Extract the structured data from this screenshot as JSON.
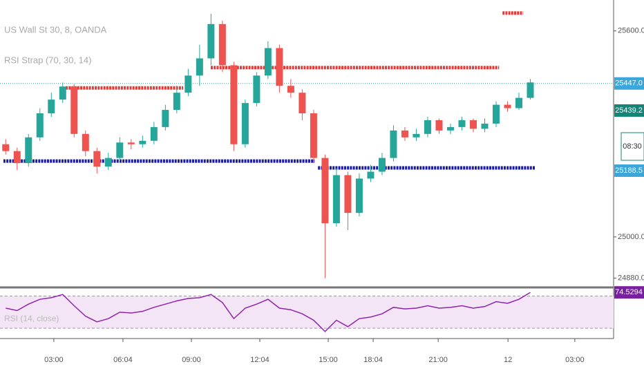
{
  "chart_data": [
    {
      "type": "candlestick",
      "title": "US Wall St 30, 8, OANDA",
      "subtitle": "RSI Strap (70, 30, 14)",
      "x": [
        0.25,
        0.75,
        1.25,
        1.75,
        2.25,
        2.75,
        3.25,
        3.75,
        4.25,
        4.75,
        5.25,
        5.75,
        6.25,
        6.75,
        7.25,
        7.75,
        8.25,
        8.75,
        9.25,
        9.75,
        10.25,
        10.75,
        11.25,
        11.75,
        12.25,
        12.75,
        13.25,
        13.75,
        14.25,
        14.75,
        15.25,
        15.75,
        16.25,
        16.75,
        17.25,
        17.75,
        18.25,
        18.75,
        19.25,
        19.75,
        20.25,
        20.75,
        21.25,
        21.75,
        22.25,
        22.75,
        23.25
      ],
      "open": [
        25270,
        25250,
        25215,
        25290,
        25360,
        25400,
        25438,
        25300,
        25250,
        25205,
        25230,
        25275,
        25270,
        25280,
        25320,
        25370,
        25420,
        25470,
        25520,
        25620,
        25500,
        25270,
        25390,
        25470,
        25550,
        25440,
        25420,
        25360,
        25230,
        25040,
        25180,
        25070,
        25170,
        25190,
        25230,
        25310,
        25290,
        25300,
        25340,
        25310,
        25320,
        25340,
        25315,
        25330,
        25385,
        25375,
        25405
      ],
      "high": [
        25285,
        25260,
        25300,
        25375,
        25420,
        25450,
        25445,
        25310,
        25260,
        25245,
        25290,
        25285,
        25295,
        25335,
        25385,
        25440,
        25490,
        25560,
        25650,
        25630,
        25510,
        25400,
        25480,
        25570,
        25560,
        25460,
        25430,
        25370,
        25240,
        25200,
        25190,
        25185,
        25210,
        25245,
        25325,
        25320,
        25315,
        25350,
        25345,
        25330,
        25350,
        25345,
        25345,
        25395,
        25395,
        25420,
        25460
      ],
      "low": [
        25240,
        25195,
        25205,
        25280,
        25350,
        25390,
        25290,
        25235,
        25185,
        25195,
        25220,
        25255,
        25260,
        25270,
        25310,
        25360,
        25410,
        25440,
        25500,
        25480,
        25250,
        25260,
        25380,
        25460,
        25420,
        25405,
        25340,
        25215,
        24880,
        25030,
        25020,
        25060,
        25160,
        25180,
        25220,
        25280,
        25280,
        25290,
        25300,
        25300,
        25310,
        25305,
        25305,
        25320,
        25365,
        25370,
        25400
      ],
      "close": [
        25250,
        25215,
        25290,
        25360,
        25400,
        25438,
        25300,
        25250,
        25205,
        25230,
        25275,
        25270,
        25280,
        25320,
        25370,
        25420,
        25470,
        25520,
        25620,
        25500,
        25270,
        25390,
        25470,
        25550,
        25440,
        25420,
        25360,
        25230,
        25040,
        25180,
        25070,
        25170,
        25190,
        25230,
        25310,
        25290,
        25300,
        25340,
        25310,
        25320,
        25340,
        25315,
        25330,
        25385,
        25375,
        25405,
        25450
      ],
      "up_color": "#26a69a",
      "down_color": "#ef5350",
      "xlim": [
        0,
        26.9
      ],
      "ylim": [
        24855,
        25690
      ],
      "yticks": [
        {
          "value": 25600,
          "label": "25600.0"
        },
        {
          "value": 25000,
          "label": "25000.0"
        },
        {
          "value": 24880,
          "label": "24880.0"
        }
      ],
      "xticks": [
        {
          "value": 2.36,
          "label": "03:00"
        },
        {
          "value": 5.39,
          "label": "06:04"
        },
        {
          "value": 8.39,
          "label": "09:00"
        },
        {
          "value": 11.39,
          "label": "12:04"
        },
        {
          "value": 14.39,
          "label": "15:00"
        },
        {
          "value": 16.36,
          "label": "18:04"
        },
        {
          "value": 19.21,
          "label": "21:00"
        },
        {
          "value": 22.27,
          "label": "12"
        },
        {
          "value": 25.2,
          "label": "03:00"
        }
      ],
      "levels": [
        {
          "color": "#e53935",
          "value": 25434,
          "x": [
            2.88,
            8.03
          ]
        },
        {
          "color": "#e53935",
          "value": 25493,
          "x": [
            9.24,
            21.88
          ]
        },
        {
          "color": "#e53935",
          "value": 25652,
          "x": [
            22.03,
            22.94
          ]
        },
        {
          "color": "#1a1aa8",
          "value": 25221,
          "x": [
            0.15,
            13.79
          ]
        },
        {
          "color": "#1a1aa8",
          "value": 25201,
          "x": [
            13.94,
            23.48
          ]
        }
      ],
      "price_line": {
        "value": 25447,
        "label": "25447.0",
        "color": "#26a69a"
      },
      "badges": [
        {
          "value": 25439.2,
          "label": "25439.2",
          "color": "#128576"
        },
        {
          "value": 25188.5,
          "label": "25188.5",
          "color": "#3aa6dc"
        }
      ],
      "countdown": "08:30"
    },
    {
      "type": "line",
      "title": "RSI (14, close)",
      "color": "#8e24aa",
      "band_color": "#f3e5f5",
      "x": [
        0.25,
        0.75,
        1.25,
        1.75,
        2.25,
        2.75,
        3.25,
        3.75,
        4.25,
        4.75,
        5.25,
        5.75,
        6.25,
        6.75,
        7.25,
        7.75,
        8.25,
        8.75,
        9.25,
        9.75,
        10.25,
        10.75,
        11.25,
        11.75,
        12.25,
        12.75,
        13.25,
        13.75,
        14.25,
        14.75,
        15.25,
        15.75,
        16.25,
        16.75,
        17.25,
        17.75,
        18.25,
        18.75,
        19.25,
        19.75,
        20.25,
        20.75,
        21.25,
        21.75,
        22.25,
        22.75,
        23.25
      ],
      "values": [
        55,
        52,
        60,
        66,
        68,
        72,
        58,
        45,
        38,
        42,
        50,
        49,
        51,
        56,
        60,
        64,
        67,
        68,
        72,
        62,
        42,
        55,
        60,
        66,
        55,
        53,
        48,
        40,
        26,
        40,
        32,
        42,
        44,
        48,
        56,
        54,
        55,
        58,
        55,
        56,
        58,
        55,
        57,
        63,
        61,
        66,
        74.5294
      ],
      "xlim": [
        0,
        26.9
      ],
      "ylim": [
        19,
        79
      ],
      "levels": [
        70,
        30
      ]
    }
  ]
}
